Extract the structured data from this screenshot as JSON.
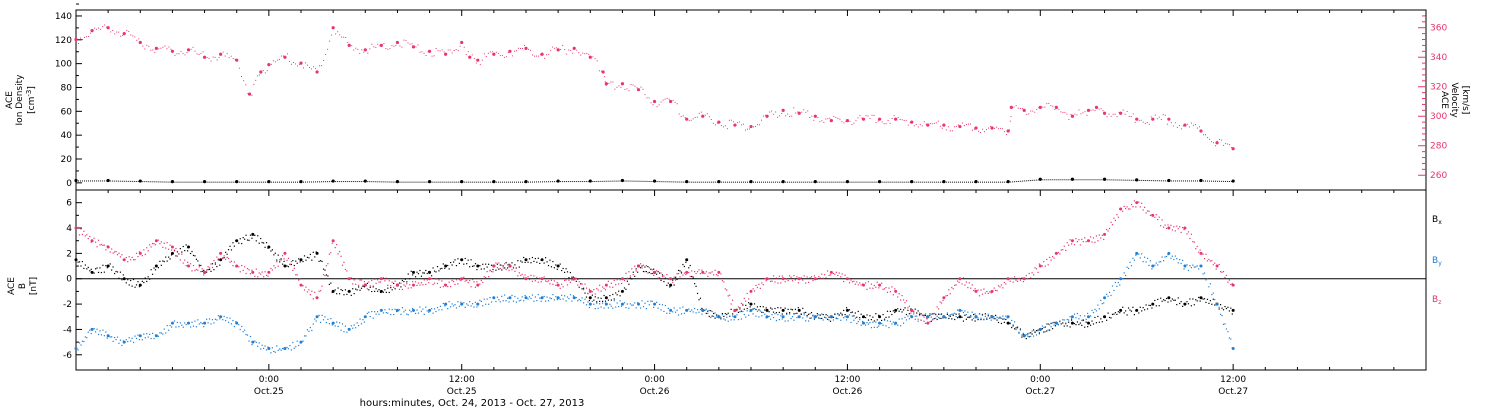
{
  "colors": {
    "axis": "#000000",
    "density": "#000000",
    "velocity": "#e8366a",
    "bx": "#000000",
    "by": "#1f7fd6",
    "bz": "#e8366a"
  },
  "x_axis": {
    "label": "hours:minutes, Oct. 24, 2013 - Oct. 27, 2013",
    "ticks": [
      {
        "hour": 24,
        "time": "0:00",
        "date": "Oct.25"
      },
      {
        "hour": 36,
        "time": "12:00",
        "date": "Oct.25"
      },
      {
        "hour": 48,
        "time": "0:00",
        "date": "Oct.26"
      },
      {
        "hour": 60,
        "time": "12:00",
        "date": "Oct.26"
      },
      {
        "hour": 72,
        "time": "0:00",
        "date": "Oct.27"
      },
      {
        "hour": 84,
        "time": "12:00",
        "date": "Oct.27"
      }
    ]
  },
  "chart_data": [
    {
      "type": "scatter",
      "panel": "top",
      "ylabel_left": [
        "ACE",
        "Ion Density",
        "[cm-3]"
      ],
      "ylabel_right": [
        "ACE",
        "Velocity",
        "[km/s]"
      ],
      "xlim_hours": [
        12,
        96
      ],
      "ylim_left": [
        -6,
        145
      ],
      "ylim_right": [
        250,
        372
      ],
      "yticks_left": [
        0,
        20,
        40,
        60,
        80,
        100,
        120,
        140
      ],
      "yticks_right": [
        260,
        280,
        300,
        320,
        340,
        360
      ],
      "series": [
        {
          "axis": "left",
          "x_hours": [
            12,
            14,
            16,
            18,
            20,
            22,
            24,
            26,
            28,
            30,
            32,
            34,
            36,
            38,
            40,
            42,
            44,
            46,
            48,
            50,
            52,
            54,
            56,
            58,
            60,
            62,
            64,
            66,
            68,
            70,
            72,
            74,
            76,
            78,
            80,
            82,
            84
          ],
          "values": [
            2,
            2,
            1.5,
            1,
            1,
            1,
            1,
            1,
            1.5,
            1.5,
            1,
            1,
            1,
            1,
            1,
            1.5,
            1.5,
            2,
            1.5,
            1,
            1,
            1,
            1,
            1,
            1,
            1,
            1,
            1,
            1,
            1,
            3,
            3,
            3,
            2.5,
            2,
            2,
            1.5
          ]
        },
        {
          "axis": "right",
          "x_hours": [
            12,
            13,
            14,
            15,
            16,
            17,
            18,
            19,
            20,
            21,
            22,
            22.8,
            23.5,
            24,
            25,
            26,
            27,
            28,
            29,
            30,
            31,
            32,
            33,
            34,
            35,
            36,
            36.5,
            37,
            38,
            39,
            40,
            41,
            42,
            43,
            44,
            44.8,
            45,
            46,
            47,
            48,
            49,
            50,
            51,
            52,
            53,
            54,
            55,
            56,
            57,
            58,
            59,
            60,
            61,
            62,
            63,
            64,
            65,
            66,
            67,
            68,
            69,
            70,
            70.2,
            71,
            72,
            73,
            74,
            75,
            75.5,
            76,
            77,
            78,
            79,
            80,
            81,
            82,
            83,
            84
          ],
          "values": [
            352,
            358,
            360,
            356,
            350,
            346,
            344,
            345,
            340,
            342,
            338,
            315,
            330,
            335,
            340,
            336,
            330,
            360,
            348,
            345,
            348,
            350,
            347,
            344,
            342,
            350,
            340,
            338,
            342,
            344,
            346,
            342,
            345,
            346,
            340,
            330,
            322,
            322,
            318,
            310,
            310,
            298,
            300,
            296,
            294,
            293,
            300,
            304,
            302,
            300,
            297,
            297,
            298,
            298,
            298,
            296,
            294,
            294,
            293,
            292,
            292,
            290,
            306,
            304,
            306,
            306,
            300,
            304,
            306,
            302,
            302,
            298,
            298,
            298,
            294,
            290,
            282,
            278
          ]
        }
      ]
    },
    {
      "type": "scatter",
      "panel": "bottom",
      "ylabel": [
        "ACE",
        "B",
        "[nT]"
      ],
      "xlim_hours": [
        12,
        96
      ],
      "ylim": [
        -7.2,
        7.0
      ],
      "yticks": [
        -6,
        -4,
        -2,
        0,
        2,
        4,
        6
      ],
      "zero_line": true,
      "series": [
        {
          "name": "Bx",
          "x_hours": [
            12,
            13,
            14,
            15,
            16,
            17,
            18,
            19,
            20,
            21,
            22,
            23,
            24,
            25,
            26,
            27,
            28,
            29,
            30,
            31,
            32,
            33,
            34,
            35,
            36,
            37,
            38,
            39,
            40,
            41,
            42,
            43,
            44,
            45,
            46,
            47,
            48,
            49,
            50,
            51,
            52,
            53,
            54,
            55,
            56,
            57,
            58,
            59,
            60,
            61,
            62,
            63,
            64,
            65,
            66,
            67,
            68,
            69,
            70,
            71,
            72,
            73,
            74,
            75,
            76,
            77,
            78,
            79,
            80,
            81,
            82,
            83,
            84
          ],
          "values": [
            1.5,
            0.5,
            1,
            0,
            -0.5,
            1,
            2,
            2.5,
            0.5,
            1.5,
            3,
            3.5,
            2.5,
            1,
            1.5,
            2,
            -1,
            -1,
            -0.5,
            -1,
            -0.5,
            0.5,
            0.5,
            1,
            1.5,
            1,
            1,
            1,
            1.5,
            1.5,
            1,
            0,
            -1.5,
            -1.5,
            -1,
            1,
            0.5,
            -0.5,
            1.5,
            -2.5,
            -3,
            -2.5,
            -2,
            -2.5,
            -2.5,
            -2.5,
            -3,
            -3,
            -2.5,
            -3,
            -3,
            -2.5,
            -2.5,
            -3,
            -3,
            -3,
            -3,
            -3,
            -3.5,
            -4.5,
            -4,
            -3.5,
            -3.5,
            -3.5,
            -3,
            -2.5,
            -2.5,
            -2,
            -1.5,
            -2,
            -1.5,
            -2,
            -2.5
          ]
        },
        {
          "name": "By",
          "x_hours": [
            12,
            13,
            14,
            15,
            16,
            17,
            18,
            19,
            20,
            21,
            22,
            23,
            24,
            25,
            26,
            27,
            28,
            29,
            30,
            31,
            32,
            33,
            34,
            35,
            36,
            37,
            38,
            39,
            40,
            41,
            42,
            43,
            44,
            45,
            46,
            47,
            48,
            49,
            50,
            51,
            52,
            53,
            54,
            55,
            56,
            57,
            58,
            59,
            60,
            61,
            62,
            63,
            64,
            65,
            66,
            67,
            68,
            69,
            70,
            71,
            72,
            73,
            74,
            75,
            76,
            77,
            78,
            79,
            80,
            81,
            82,
            83,
            84
          ],
          "values": [
            -5.5,
            -4,
            -4.5,
            -5,
            -4.5,
            -4.5,
            -3.5,
            -3.5,
            -3.5,
            -3,
            -3.5,
            -5,
            -5.5,
            -5.5,
            -5,
            -3,
            -3.5,
            -4,
            -3,
            -2.5,
            -2.5,
            -2.5,
            -2.5,
            -2,
            -2,
            -2,
            -1.5,
            -1.5,
            -1.5,
            -1.5,
            -1.5,
            -1.5,
            -2,
            -2,
            -2,
            -2,
            -2,
            -2.5,
            -2.5,
            -2.5,
            -3,
            -3,
            -2.5,
            -3,
            -3,
            -3,
            -3,
            -3,
            -3,
            -3.5,
            -3.5,
            -3.5,
            -3,
            -3,
            -3,
            -2.5,
            -3,
            -3,
            -3,
            -4.5,
            -4,
            -3.5,
            -3,
            -3,
            -1.5,
            0,
            2,
            1,
            2,
            1,
            1,
            -2,
            -5.5
          ]
        },
        {
          "name": "Bz",
          "x_hours": [
            12,
            13,
            14,
            15,
            16,
            17,
            18,
            19,
            20,
            21,
            22,
            23,
            24,
            25,
            26,
            27,
            28,
            29,
            30,
            31,
            32,
            33,
            34,
            35,
            36,
            37,
            38,
            39,
            40,
            41,
            42,
            43,
            44,
            45,
            46,
            47,
            48,
            49,
            50,
            51,
            52,
            53,
            54,
            55,
            56,
            57,
            58,
            59,
            60,
            61,
            62,
            63,
            64,
            65,
            66,
            67,
            68,
            69,
            70,
            71,
            72,
            73,
            74,
            75,
            76,
            77,
            78,
            79,
            80,
            81,
            82,
            83,
            84
          ],
          "values": [
            4,
            3,
            2.5,
            1.5,
            2,
            3,
            2.5,
            1,
            0.5,
            2,
            1,
            0.5,
            0.5,
            2,
            -0.5,
            -1.5,
            3,
            0,
            -0.5,
            0,
            -0.5,
            -0.5,
            0,
            -0.5,
            0,
            -0.5,
            1,
            1,
            0,
            0,
            -0.5,
            0,
            -1,
            -0.5,
            0,
            1,
            0.5,
            0,
            0.5,
            0.5,
            0.5,
            -2.5,
            -1,
            0,
            0,
            0,
            0,
            0.5,
            0,
            -0.5,
            -0.5,
            -1,
            -2.5,
            -3.5,
            -1.5,
            0,
            -1,
            -1,
            0,
            0,
            1,
            2,
            3,
            3,
            3.5,
            5.5,
            6,
            5,
            4,
            4,
            2,
            1,
            -0.5
          ]
        }
      ],
      "legend": [
        {
          "series": "Bx",
          "label": "Bx"
        },
        {
          "series": "By",
          "label": "By"
        },
        {
          "series": "Bz",
          "label": "Bz"
        }
      ]
    }
  ]
}
